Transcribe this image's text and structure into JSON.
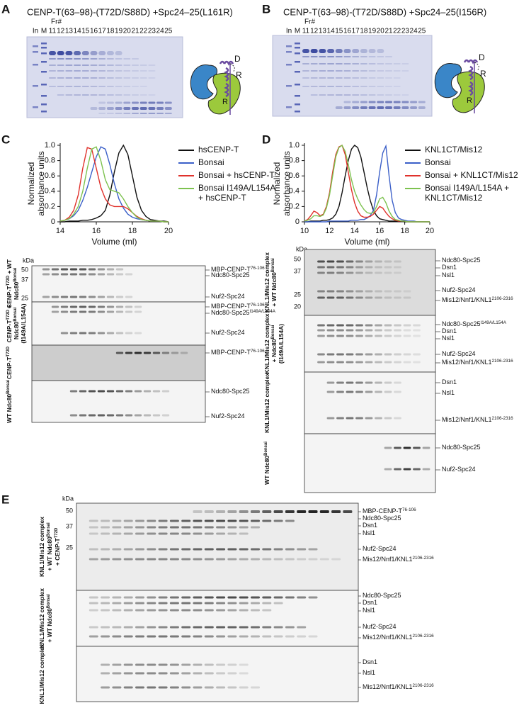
{
  "panels": {
    "A": {
      "letter": "A",
      "title": "CENP-T(63–98)-(T72D/S88D) +Spc24–25(L161R)",
      "fraction_label": "Fr#",
      "lanes": [
        "In",
        "M",
        "11",
        "12",
        "13",
        "14",
        "15",
        "16",
        "17",
        "18",
        "19",
        "20",
        "21",
        "22",
        "23",
        "24",
        "25"
      ],
      "cartoon_labels": [
        "D",
        "R",
        "R"
      ]
    },
    "B": {
      "letter": "B",
      "title": "CENP-T(63–98)-(T72D/S88D) +Spc24–25(I156R)",
      "fraction_label": "Fr#",
      "lanes": [
        "In",
        "M",
        "11",
        "12",
        "13",
        "14",
        "15",
        "16",
        "17",
        "18",
        "19",
        "20",
        "21",
        "22",
        "23",
        "24",
        "25"
      ],
      "cartoon_labels": [
        "D",
        "R",
        "R"
      ]
    }
  },
  "chart_letters": [
    "C",
    "D"
  ],
  "chart_data": [
    {
      "type": "line",
      "ylabel": [
        "Normalized",
        "absorbance units"
      ],
      "xlabel": "Volume (ml)",
      "x": [
        14,
        14.25,
        14.5,
        14.75,
        15,
        15.25,
        15.5,
        15.75,
        16,
        16.25,
        16.5,
        16.75,
        17,
        17.25,
        17.5,
        17.75,
        18,
        18.25,
        18.5,
        18.75,
        19,
        19.25,
        19.5,
        19.75,
        20
      ],
      "xlim": [
        14,
        20
      ],
      "xticks": [
        14,
        16,
        18,
        20
      ],
      "ylim": [
        0,
        1
      ],
      "yticks": [
        0,
        0.2,
        0.4,
        0.6,
        0.8,
        {
          "value": 1,
          "label": "1.0"
        }
      ],
      "series": [
        {
          "name": "hsCENP-T",
          "color": "#111111",
          "values": [
            0,
            0,
            0.01,
            0.01,
            0.01,
            0.02,
            0.02,
            0.03,
            0.05,
            0.08,
            0.15,
            0.35,
            0.65,
            0.9,
            1.0,
            0.88,
            0.6,
            0.32,
            0.15,
            0.07,
            0.03,
            0.02,
            0.01,
            0.01,
            0
          ]
        },
        {
          "name": "Bonsai",
          "color": "#3b5fc8",
          "values": [
            0.01,
            0.02,
            0.04,
            0.08,
            0.15,
            0.28,
            0.45,
            0.65,
            0.85,
            0.98,
            0.95,
            0.75,
            0.5,
            0.3,
            0.18,
            0.1,
            0.06,
            0.04,
            0.03,
            0.02,
            0.01,
            0.01,
            0.01,
            0,
            0
          ]
        },
        {
          "name": "Bonsai + hsCENP-T",
          "color": "#e0322c",
          "values": [
            0.01,
            0.02,
            0.06,
            0.15,
            0.35,
            0.7,
            0.97,
            0.95,
            0.7,
            0.45,
            0.3,
            0.22,
            0.2,
            0.2,
            0.2,
            0.17,
            0.12,
            0.07,
            0.04,
            0.02,
            0.01,
            0.01,
            0.01,
            0,
            0
          ]
        },
        {
          "name": "Bonsai I149A/L154A + hsCENP-T",
          "color": "#7dc24f",
          "values": [
            0.01,
            0.02,
            0.04,
            0.1,
            0.2,
            0.4,
            0.7,
            0.95,
            0.98,
            0.8,
            0.55,
            0.42,
            0.4,
            0.38,
            0.3,
            0.2,
            0.12,
            0.06,
            0.03,
            0.02,
            0.01,
            0.01,
            0.01,
            0,
            0
          ]
        }
      ]
    },
    {
      "type": "line",
      "ylabel": [
        "Normalized",
        "absorbance units"
      ],
      "xlabel": "Volume (ml)",
      "x": [
        10,
        10.25,
        10.5,
        10.75,
        11,
        11.25,
        11.5,
        11.75,
        12,
        12.25,
        12.5,
        12.75,
        13,
        13.25,
        13.5,
        13.75,
        14,
        14.25,
        14.5,
        14.75,
        15,
        15.25,
        15.5,
        15.75,
        16,
        16.25,
        16.5,
        16.75,
        17,
        17.25,
        17.5,
        17.75,
        18,
        18.25,
        18.5,
        18.75,
        19,
        19.25,
        19.5,
        19.75,
        20
      ],
      "xlim": [
        10,
        20
      ],
      "xticks": [
        10,
        12,
        14,
        16,
        18,
        20
      ],
      "ylim": [
        0,
        1
      ],
      "yticks": [
        0,
        0.2,
        0.4,
        0.6,
        0.8,
        {
          "value": 1,
          "label": "1.0"
        }
      ],
      "series": [
        {
          "name": "KNL1CT/Mis12",
          "color": "#111111",
          "values": [
            0,
            0,
            0.01,
            0.01,
            0.01,
            0.01,
            0.02,
            0.02,
            0.03,
            0.05,
            0.1,
            0.2,
            0.38,
            0.6,
            0.8,
            0.95,
            1.0,
            0.97,
            0.85,
            0.65,
            0.45,
            0.28,
            0.15,
            0.08,
            0.04,
            0.03,
            0.02,
            0.01,
            0.01,
            0.01,
            0.01,
            0.01,
            0,
            0,
            0,
            0,
            0,
            0,
            0,
            0,
            0
          ]
        },
        {
          "name": "Bonsai",
          "color": "#3b5fc8",
          "values": [
            0,
            0,
            0,
            0,
            0,
            0,
            0,
            0,
            0.01,
            0.01,
            0.01,
            0.01,
            0.01,
            0.01,
            0.01,
            0.02,
            0.02,
            0.02,
            0.03,
            0.03,
            0.05,
            0.08,
            0.15,
            0.35,
            0.65,
            0.9,
            0.99,
            0.6,
            0.28,
            0.12,
            0.05,
            0.03,
            0.02,
            0.01,
            0.01,
            0.01,
            0,
            0,
            0,
            0,
            0
          ]
        },
        {
          "name": "Bonsai + KNL1CT/Mis12",
          "color": "#e0322c",
          "values": [
            0.01,
            0.03,
            0.08,
            0.14,
            0.12,
            0.08,
            0.1,
            0.2,
            0.38,
            0.65,
            0.88,
            0.98,
            1.0,
            0.88,
            0.65,
            0.42,
            0.25,
            0.14,
            0.08,
            0.06,
            0.06,
            0.07,
            0.1,
            0.15,
            0.2,
            0.18,
            0.12,
            0.07,
            0.04,
            0.02,
            0.01,
            0.01,
            0.01,
            0,
            0,
            0,
            0,
            0,
            0,
            0,
            0
          ]
        },
        {
          "name": "Bonsai I149A/L154A + KNL1CT/Mis12",
          "color": "#7dc24f",
          "values": [
            0.01,
            0.02,
            0.04,
            0.08,
            0.08,
            0.07,
            0.09,
            0.18,
            0.35,
            0.6,
            0.85,
            0.97,
            1.0,
            0.92,
            0.75,
            0.55,
            0.4,
            0.3,
            0.22,
            0.16,
            0.12,
            0.11,
            0.12,
            0.2,
            0.3,
            0.32,
            0.25,
            0.14,
            0.07,
            0.03,
            0.02,
            0.01,
            0.01,
            0,
            0,
            0,
            0,
            0,
            0,
            0,
            0
          ]
        }
      ]
    }
  ],
  "gels": {
    "C": {
      "kda": "kDa",
      "markers": [
        50,
        37,
        25
      ],
      "rows": [
        {
          "label": [
            [
              "CENP-T",
              {
                "sup": "T72D"
              },
              " + WT"
            ],
            [
              "Ndc80",
              {
                "sup": "Bonsai"
              }
            ]
          ],
          "bands": [
            [
              "MBP-CENP-T",
              {
                "sup": "76-106"
              }
            ],
            [
              "Ndc80-Spc25"
            ],
            [
              "Nuf2-Spc24"
            ]
          ]
        },
        {
          "label": [
            [
              "CENP-T",
              {
                "sup": "T72D"
              },
              " +"
            ],
            [
              "Ndc80",
              {
                "sup": "Bonsai"
              }
            ],
            [
              "(I149A/L154A)"
            ]
          ],
          "bands": [
            [
              "MBP-CENP-T",
              {
                "sup": "76-106"
              }
            ],
            [
              "Ndc80-Spc25",
              {
                "sup": "I149A/L154A"
              }
            ],
            [
              "Nuf2-Spc24"
            ]
          ]
        },
        {
          "label": [
            [
              "CENP-T",
              {
                "sup": "T72D"
              }
            ]
          ],
          "bands": [
            [
              "MBP-CENP-T",
              {
                "sup": "76-106"
              }
            ]
          ]
        },
        {
          "label": [
            [
              "WT Ndc80",
              {
                "sup": "Bonsai"
              }
            ]
          ],
          "bands": [
            [
              "Ndc80-Spc25"
            ],
            [
              "Nuf2-Spc24"
            ]
          ]
        }
      ]
    },
    "D": {
      "kda": "kDa",
      "markers": [
        50,
        37,
        25,
        20
      ],
      "rows": [
        {
          "label": [
            [
              "KNL1/Mis12 complex"
            ],
            [
              "+ WT Ndc80",
              {
                "sup": "Bonsai"
              }
            ]
          ],
          "bands": [
            [
              "Ndc80-Spc25"
            ],
            [
              "Dsn1"
            ],
            [
              "Nsl1"
            ],
            [
              "Nuf2-Spc24"
            ],
            [
              "Mis12/Nnf1/KNL1",
              {
                "sup": "2106-2316"
              }
            ]
          ]
        },
        {
          "label": [
            [
              "KNL1/Mis12 complex"
            ],
            [
              "+ Ndc80",
              {
                "sup": "Bonsai"
              }
            ],
            [
              "(I149A/L154A)"
            ]
          ],
          "bands": [
            [
              "Ndc80-Spc25",
              {
                "sup": "I149A/L154A"
              }
            ],
            [
              "Dsn1"
            ],
            [
              "Nsl1"
            ],
            [
              "Nuf2-Spc24"
            ],
            [
              "Mis12/Nnf1/KNL1",
              {
                "sup": "2106-2316"
              }
            ]
          ]
        },
        {
          "label": [
            [
              "KNL1/Mis12 complex"
            ]
          ],
          "bands": [
            [
              "Dsn1"
            ],
            [
              "Nsl1"
            ],
            [
              "Mis12/Nnf1/KNL1",
              {
                "sup": "2106-2316"
              }
            ]
          ]
        },
        {
          "label": [
            [
              "WT Ndc80",
              {
                "sup": "Bonsai"
              }
            ]
          ],
          "bands": [
            [
              "Ndc80-Spc25"
            ],
            [
              "Nuf2-Spc24"
            ]
          ]
        }
      ]
    },
    "E": {
      "letter": "E",
      "kda": "kDa",
      "markers": [
        50,
        37,
        25
      ],
      "rows": [
        {
          "label": [
            [
              "KNL1/Mis12 complex"
            ],
            [
              "+ WT Ndc80",
              {
                "sup": "Bonsai"
              }
            ],
            [
              "+ CENP-T",
              {
                "sup": "T72D"
              }
            ]
          ],
          "bands": [
            [
              "MBP-CENP-T",
              {
                "sup": "76-106"
              }
            ],
            [
              "Ndc80-Spc25"
            ],
            [
              "Dsn1"
            ],
            [
              "Nsl1"
            ],
            [
              "Nuf2-Spc24"
            ],
            [
              "Mis12/Nnf1/KNL1",
              {
                "sup": "2106-2316"
              }
            ]
          ]
        },
        {
          "label": [
            [
              "KNL1/Mis12 complex"
            ],
            [
              "+ WT Ndc80",
              {
                "sup": "Bonsai"
              }
            ]
          ],
          "bands": [
            [
              "Ndc80-Spc25"
            ],
            [
              "Dsn1"
            ],
            [
              "Nsl1"
            ],
            [
              "Nuf2-Spc24"
            ],
            [
              "Mis12/Nnf1/KNL1",
              {
                "sup": "2106-2316"
              }
            ]
          ]
        },
        {
          "label": [
            [
              "KNL1/Mis12 complex"
            ]
          ],
          "bands": [
            [
              "Dsn1"
            ],
            [
              "Nsl1"
            ],
            [
              "Mis12/Nnf1/KNL1",
              {
                "sup": "2106-2316"
              }
            ]
          ]
        }
      ]
    }
  }
}
